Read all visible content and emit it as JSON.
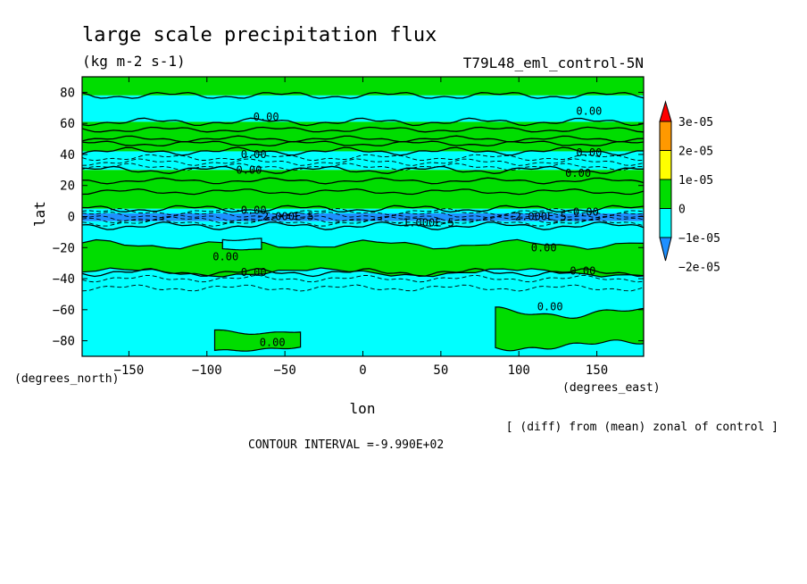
{
  "chart_data": {
    "type": "heatmap",
    "title": "large scale precipitation flux",
    "subtitle": "(kg m-2 s-1)",
    "experiment": "T79L48_eml_control-5N",
    "xlabel": "lon",
    "ylabel": "lat",
    "x_units": "(degrees_east)",
    "y_units": "(degrees_north)",
    "xlim": [
      -180,
      180
    ],
    "ylim": [
      -90,
      90
    ],
    "xticks": [
      -150,
      -100,
      -50,
      0,
      50,
      100,
      150
    ],
    "yticks": [
      80,
      60,
      40,
      20,
      0,
      -20,
      -40,
      -60,
      -80
    ],
    "xtick_labels": [
      "−150",
      "−100",
      "−50",
      "0",
      "50",
      "100",
      "150"
    ],
    "ytick_labels": [
      "80",
      "60",
      "40",
      "20",
      "0",
      "−20",
      "−40",
      "−60",
      "−80"
    ],
    "note": "[ (diff) from (mean) zonal of control ]",
    "contour_interval": "CONTOUR INTERVAL =-9.990E+02",
    "colorbar": {
      "levels": [
        -2e-05,
        -1e-05,
        0,
        1e-05,
        2e-05,
        3e-05
      ],
      "labels": [
        "−2e-05",
        "−1e-05",
        "0",
        "1e-05",
        "2e-05",
        "3e-05"
      ],
      "colors": [
        "#1e90ff",
        "#00ffff",
        "#00dd00",
        "#ffff00",
        "#ff9900",
        "#ff0000"
      ]
    },
    "bands": [
      {
        "lat_min": 78,
        "lat_max": 90,
        "value_class": 0
      },
      {
        "lat_min": 61,
        "lat_max": 78,
        "value_class": -1
      },
      {
        "lat_min": 42,
        "lat_max": 61,
        "value_class": 0
      },
      {
        "lat_min": 30,
        "lat_max": 42,
        "value_class": -1
      },
      {
        "lat_min": 5,
        "lat_max": 30,
        "value_class": 0
      },
      {
        "lat_min": 2,
        "lat_max": 5,
        "value_class": -1
      },
      {
        "lat_min": -3,
        "lat_max": 2,
        "value_class": -2
      },
      {
        "lat_min": -6,
        "lat_max": -3,
        "value_class": -1
      },
      {
        "lat_min": -36,
        "lat_max": -6,
        "value_class": -1
      },
      {
        "lat_min": -90,
        "lat_max": -36,
        "value_class": -1
      }
    ],
    "patches": [
      {
        "lon": [
          -180,
          180
        ],
        "lat": [
          -36,
          -18
        ],
        "value_class": 0
      },
      {
        "lon": [
          85,
          180
        ],
        "lat": [
          -83,
          -62
        ],
        "value_class": 0
      },
      {
        "lon": [
          -95,
          -40
        ],
        "lat": [
          -85,
          -74
        ],
        "value_class": 0
      },
      {
        "lon": [
          -90,
          -65
        ],
        "lat": [
          -22,
          -14
        ],
        "value_class": -1
      }
    ],
    "contour_labels": [
      {
        "text": "0.00",
        "lon": -62,
        "lat": 64
      },
      {
        "text": "0.00",
        "lon": 145,
        "lat": 68
      },
      {
        "text": "0.00",
        "lon": -70,
        "lat": 40
      },
      {
        "text": "0.00",
        "lon": 145,
        "lat": 41
      },
      {
        "text": "0.00",
        "lon": -73,
        "lat": 30
      },
      {
        "text": "0.00",
        "lon": 138,
        "lat": 28
      },
      {
        "text": "0.00",
        "lon": -70,
        "lat": 4
      },
      {
        "text": "0.00",
        "lon": 143,
        "lat": 3
      },
      {
        "text": "-2.000E-5",
        "lon": -50,
        "lat": 0
      },
      {
        "text": "-1.000E-5",
        "lon": 40,
        "lat": -4
      },
      {
        "text": "-2.000E-5",
        "lon": 112,
        "lat": 0
      },
      {
        "text": "0.00",
        "lon": -88,
        "lat": -26
      },
      {
        "text": "0.00",
        "lon": 116,
        "lat": -20
      },
      {
        "text": "0.00",
        "lon": -70,
        "lat": -36
      },
      {
        "text": "0.00",
        "lon": 141,
        "lat": -35
      },
      {
        "text": "0.00",
        "lon": 120,
        "lat": -58
      },
      {
        "text": "0.00",
        "lon": -58,
        "lat": -81
      }
    ]
  }
}
